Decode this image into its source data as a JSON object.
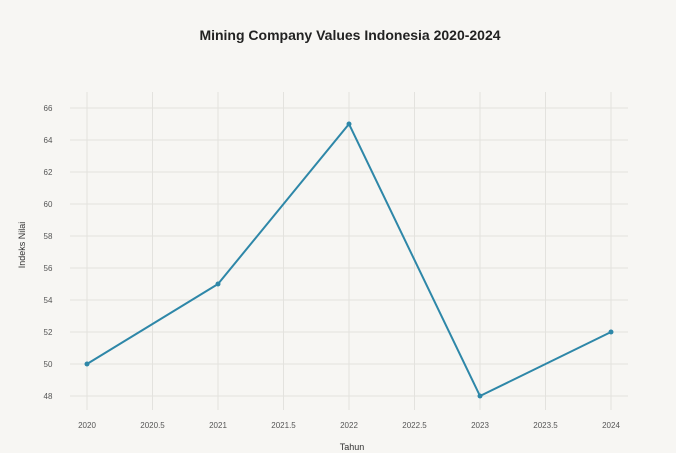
{
  "chart_data": {
    "type": "line",
    "title": "Mining Company Values Indonesia 2020-2024",
    "xlabel": "Tahun",
    "ylabel": "Indeks Nilai",
    "x": [
      2020,
      2021,
      2022,
      2023,
      2024
    ],
    "x_ticks": [
      "2020",
      "2020.5",
      "2021",
      "2021.5",
      "2022",
      "2022.5",
      "2023",
      "2023.5",
      "2024"
    ],
    "xlim": [
      2020,
      2024
    ],
    "ylim": [
      48,
      66
    ],
    "y_ticks": [
      48,
      50,
      52,
      54,
      56,
      58,
      60,
      62,
      64,
      66
    ],
    "series": [
      {
        "values": [
          50,
          55,
          65,
          48,
          52
        ],
        "color": "#2e87a8"
      }
    ],
    "grid": true,
    "legend": "none"
  }
}
